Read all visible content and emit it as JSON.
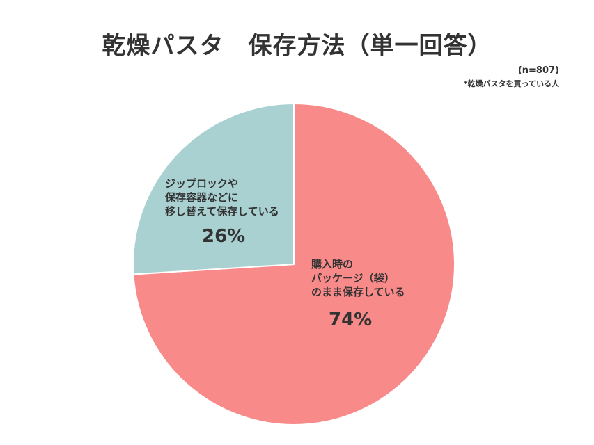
{
  "chart_data": {
    "type": "pie",
    "title": "乾燥パスタ　保存方法（単一回答）",
    "sample_size": "(n=807)",
    "note": "*乾燥パスタを買っている人",
    "start_angle_deg": 0,
    "direction": "clockwise",
    "slices": [
      {
        "label": "購入時の\nパッケージ（袋）\nのまま保存している",
        "value": 74,
        "value_label": "74%",
        "color": "#f98a8a"
      },
      {
        "label": "ジップロックや\n保存容器などに\n移し替えて保存している",
        "value": 26,
        "value_label": "26%",
        "color": "#a9d1d2"
      }
    ]
  }
}
